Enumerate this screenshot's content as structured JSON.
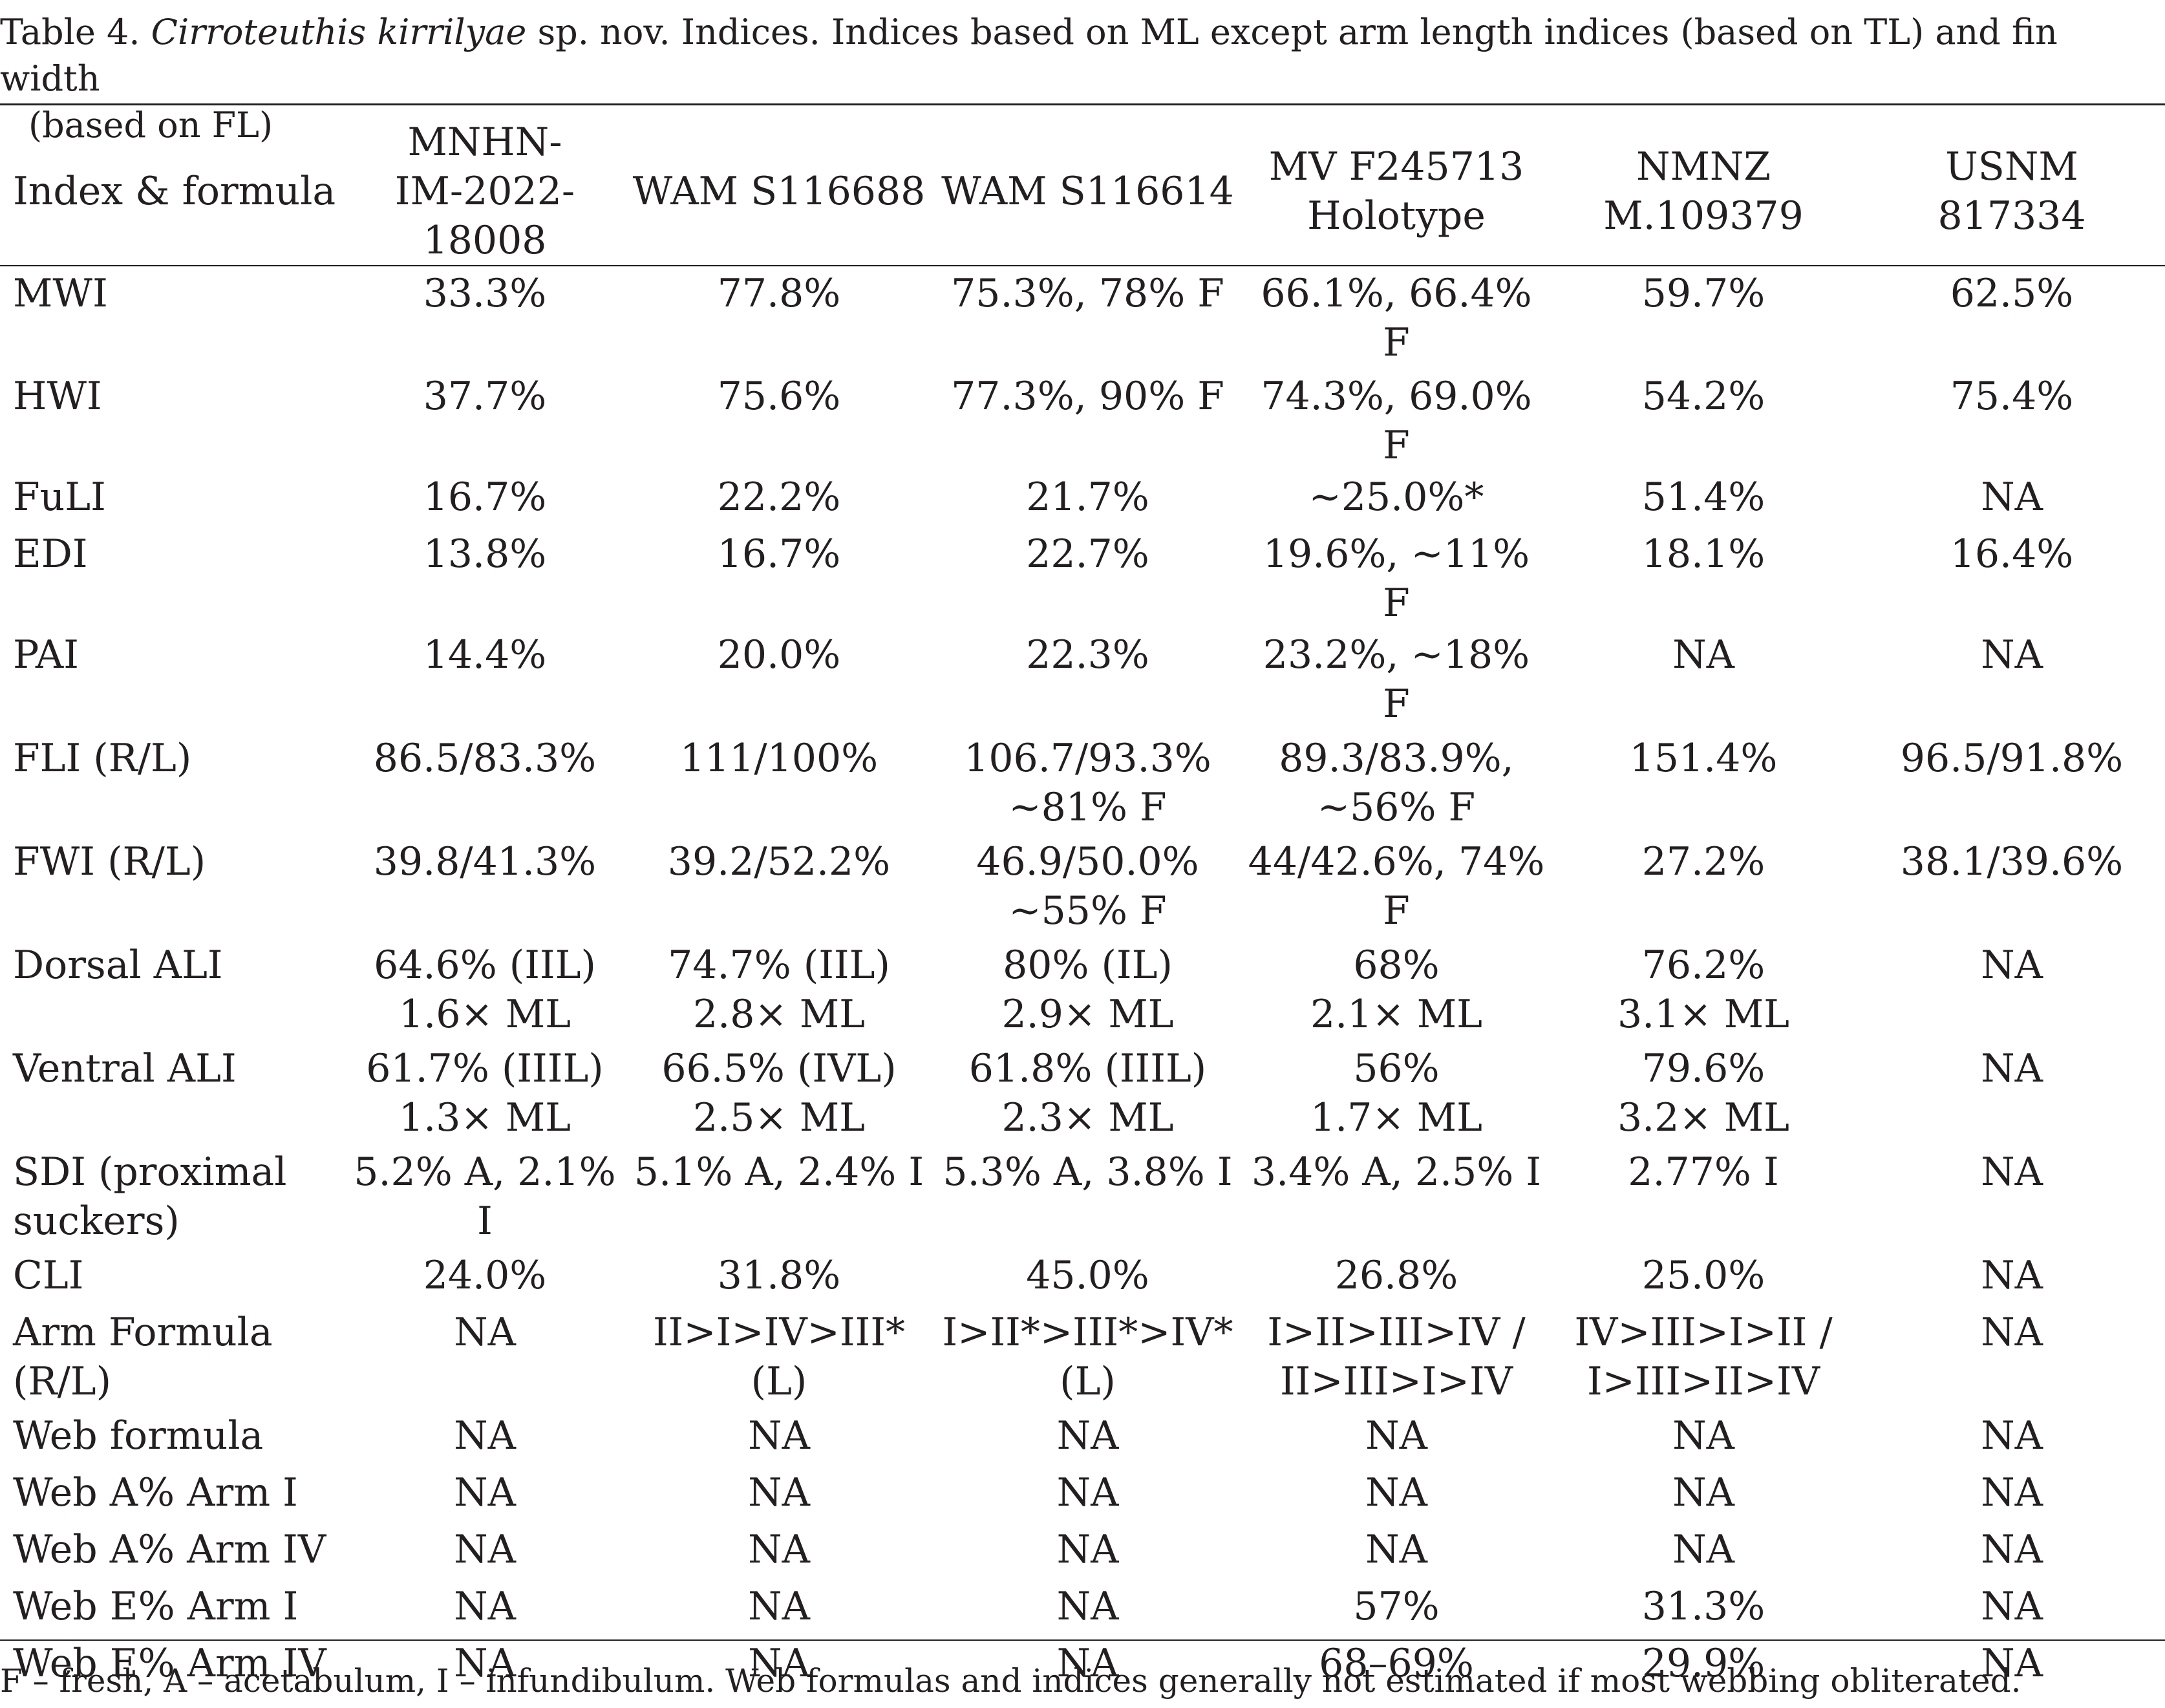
{
  "caption": {
    "label": "Table 4. ",
    "species": "Cirroteuthis kirrilyae",
    "rest_line1": " sp. nov. Indices. Indices based on ML except arm length indices (based on TL) and fin width",
    "rest_line2": "(based on FL)"
  },
  "table": {
    "headers": [
      [
        "Index & formula"
      ],
      [
        "MNHN-",
        "IM-2022-18008"
      ],
      [
        "WAM S116688"
      ],
      [
        "WAM S116614"
      ],
      [
        "MV F245713",
        "Holotype"
      ],
      [
        "NMNZ",
        "M.109379"
      ],
      [
        "USNM",
        "817334"
      ]
    ],
    "rows": [
      [
        [
          "MWI"
        ],
        [
          "33.3%"
        ],
        [
          "77.8%"
        ],
        [
          "75.3%, 78% F"
        ],
        [
          "66.1%, 66.4%",
          "F"
        ],
        [
          "59.7%"
        ],
        [
          "62.5%"
        ]
      ],
      [
        [
          "HWI"
        ],
        [
          "37.7%"
        ],
        [
          "75.6%"
        ],
        [
          "77.3%, 90% F"
        ],
        [
          "74.3%, 69.0% F"
        ],
        [
          "54.2%"
        ],
        [
          "75.4%"
        ]
      ],
      [
        [
          "FuLI"
        ],
        [
          "16.7%"
        ],
        [
          "22.2%"
        ],
        [
          "21.7%"
        ],
        [
          "~25.0%*"
        ],
        [
          "51.4%"
        ],
        [
          "NA"
        ]
      ],
      [
        [
          "EDI"
        ],
        [
          "13.8%"
        ],
        [
          "16.7%"
        ],
        [
          "22.7%"
        ],
        [
          "19.6%, ~11% F"
        ],
        [
          "18.1%"
        ],
        [
          "16.4%"
        ]
      ],
      [
        [
          "PAI"
        ],
        [
          "14.4%"
        ],
        [
          "20.0%"
        ],
        [
          "22.3%"
        ],
        [
          "23.2%, ~18%",
          "F"
        ],
        [
          "NA"
        ],
        [
          "NA"
        ]
      ],
      [
        [
          "FLI (R/L)"
        ],
        [
          "86.5/83.3%"
        ],
        [
          "111/100%"
        ],
        [
          "106.7/93.3%",
          "~81% F"
        ],
        [
          "89.3/83.9%,",
          "~56% F"
        ],
        [
          "151.4%"
        ],
        [
          "96.5/91.8%"
        ]
      ],
      [
        [
          "FWI (R/L)"
        ],
        [
          "39.8/41.3%"
        ],
        [
          "39.2/52.2%"
        ],
        [
          "46.9/50.0%",
          "~55% F"
        ],
        [
          "44/42.6%, 74%",
          "F"
        ],
        [
          "27.2%"
        ],
        [
          "38.1/39.6%"
        ]
      ],
      [
        [
          "Dorsal ALI"
        ],
        [
          "64.6% (IIL)",
          "1.6× ML"
        ],
        [
          "74.7% (IIL)",
          "2.8× ML"
        ],
        [
          "80% (IL)",
          "2.9× ML"
        ],
        [
          "68%",
          "2.1× ML"
        ],
        [
          "76.2%",
          "3.1× ML"
        ],
        [
          "NA"
        ]
      ],
      [
        [
          "Ventral ALI"
        ],
        [
          "61.7% (IIIL)",
          "1.3× ML"
        ],
        [
          "66.5% (IVL)",
          "2.5× ML"
        ],
        [
          "61.8% (IIIL)",
          "2.3× ML"
        ],
        [
          "56%",
          "1.7× ML"
        ],
        [
          "79.6%",
          "3.2× ML"
        ],
        [
          "NA"
        ]
      ],
      [
        [
          "SDI (proximal",
          "suckers)"
        ],
        [
          "5.2% A, 2.1% I"
        ],
        [
          "5.1% A, 2.4% I"
        ],
        [
          "5.3% A, 3.8% I"
        ],
        [
          "3.4% A, 2.5% I"
        ],
        [
          "2.77% I"
        ],
        [
          "NA"
        ]
      ],
      [
        [
          "CLI"
        ],
        [
          "24.0%"
        ],
        [
          "31.8%"
        ],
        [
          "45.0%"
        ],
        [
          "26.8%"
        ],
        [
          "25.0%"
        ],
        [
          "NA"
        ]
      ],
      [
        [
          "Arm Formula",
          "(R/L)"
        ],
        [
          "NA"
        ],
        [
          "II>I>IV>III*",
          "(L)"
        ],
        [
          "I>II*>III*>IV*",
          "(L)"
        ],
        [
          "I>II>III>IV /",
          "II>III>I>IV"
        ],
        [
          "IV>III>I>II /",
          "I>III>II>IV"
        ],
        [
          "NA"
        ]
      ],
      [
        [
          "Web formula"
        ],
        [
          "NA"
        ],
        [
          "NA"
        ],
        [
          "NA"
        ],
        [
          "NA"
        ],
        [
          "NA"
        ],
        [
          "NA"
        ]
      ],
      [
        [
          "Web A% Arm I"
        ],
        [
          "NA"
        ],
        [
          "NA"
        ],
        [
          "NA"
        ],
        [
          "NA"
        ],
        [
          "NA"
        ],
        [
          "NA"
        ]
      ],
      [
        [
          "Web A% Arm IV"
        ],
        [
          "NA"
        ],
        [
          "NA"
        ],
        [
          "NA"
        ],
        [
          "NA"
        ],
        [
          "NA"
        ],
        [
          "NA"
        ]
      ],
      [
        [
          "Web E% Arm I"
        ],
        [
          "NA"
        ],
        [
          "NA"
        ],
        [
          "NA"
        ],
        [
          "57%"
        ],
        [
          "31.3%"
        ],
        [
          "NA"
        ]
      ],
      [
        [
          "Web E% Arm IV"
        ],
        [
          "NA"
        ],
        [
          "NA"
        ],
        [
          "NA"
        ],
        [
          "68–69%"
        ],
        [
          "29.9%"
        ],
        [
          "NA"
        ]
      ]
    ]
  },
  "footnote": "F – fresh, A – acetabulum, I – infundibulum. Web formulas and indices generally not estimated if most webbing obliterated."
}
